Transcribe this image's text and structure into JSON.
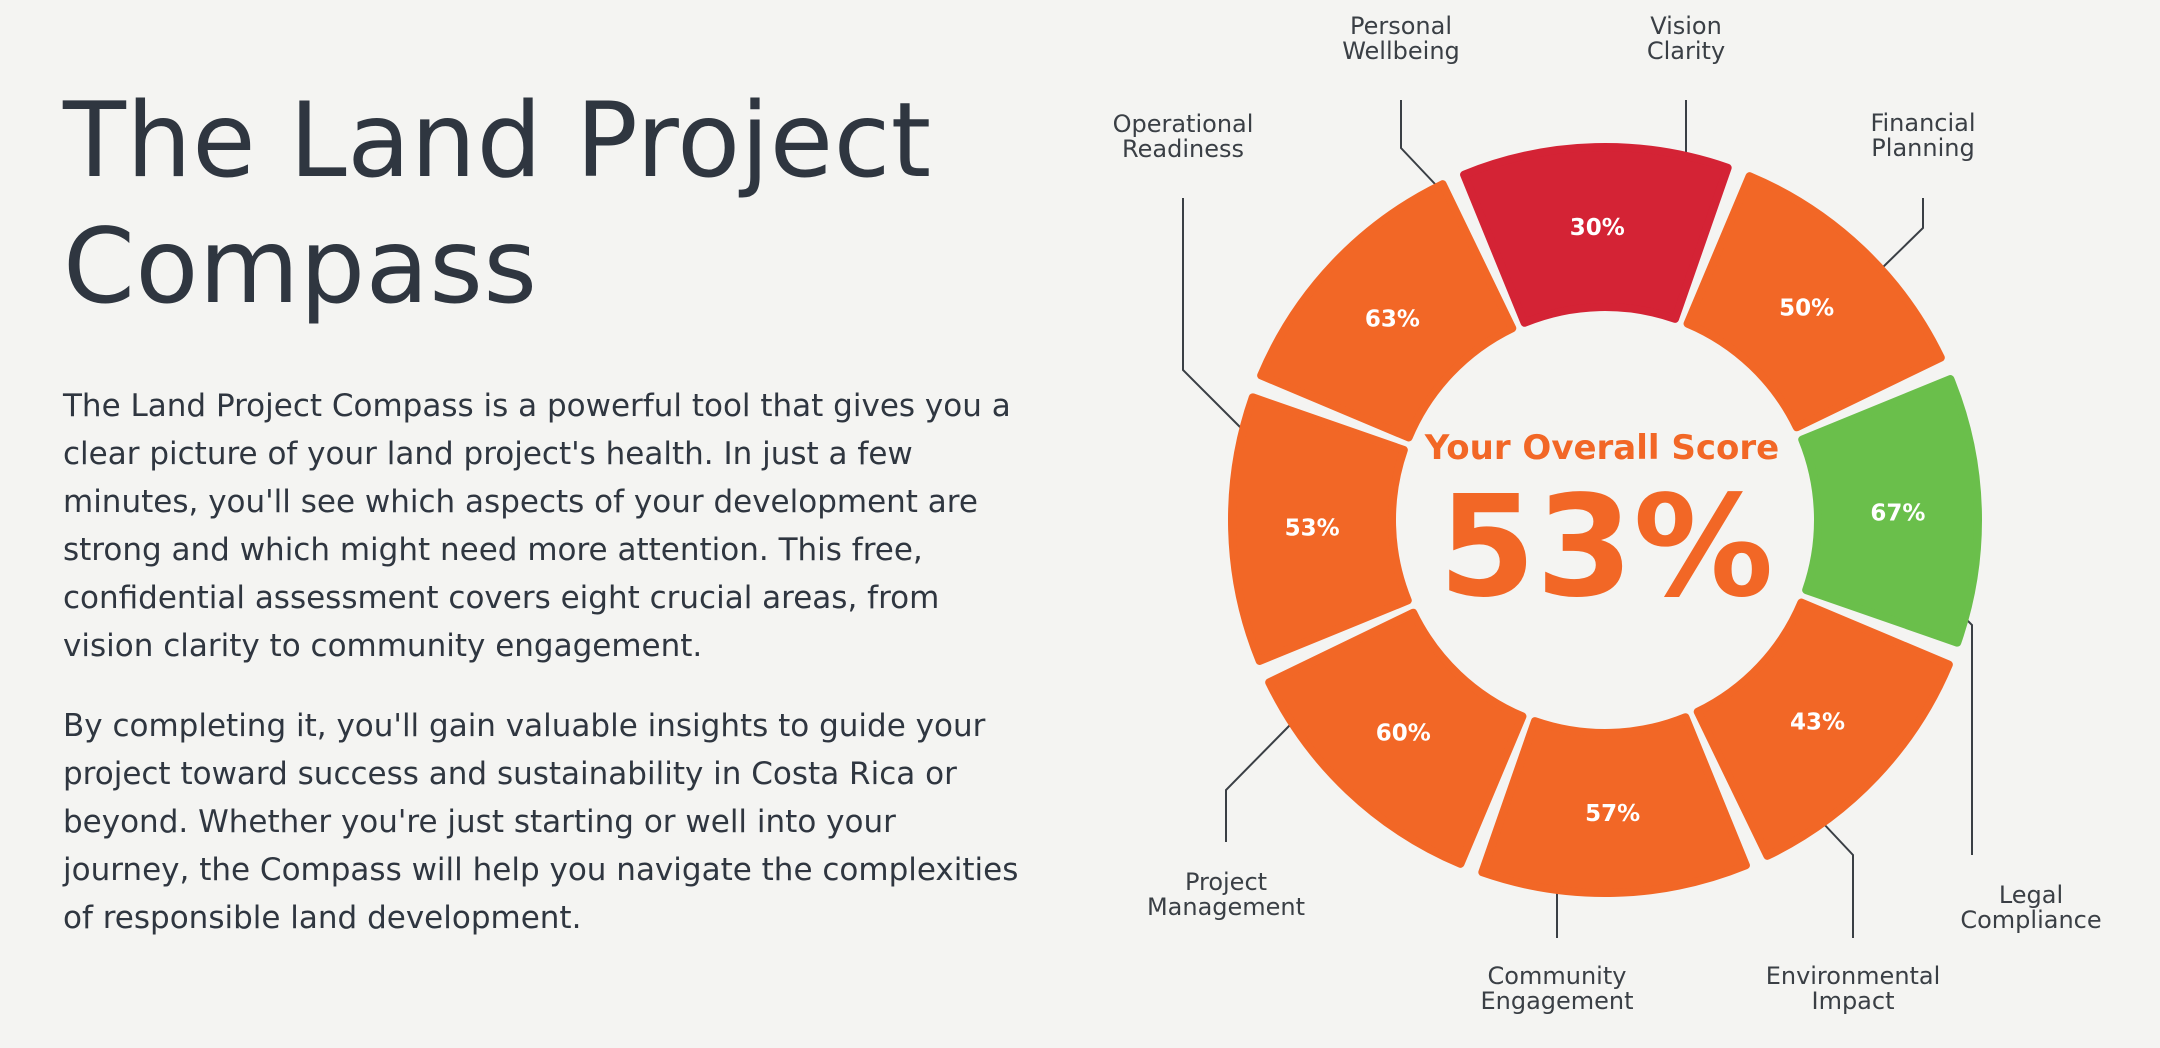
{
  "heading": {
    "title_line1": "The Land Project",
    "title_line2": "Compass"
  },
  "intro": {
    "paragraph1": "The Land Project Compass is a powerful tool that gives you a clear picture of your land project's health. In just a few minutes, you'll see which aspects of your development are strong and which might need more attention. This free, confidential assessment covers eight crucial areas, from vision clarity to community engagement.",
    "paragraph2": "By completing it, you'll gain valuable insights to guide your project toward success and sustainability in Costa Rica or beyond. Whether you're just starting or well into your journey, the Compass will help you navigate the complexities of responsible land development."
  },
  "score": {
    "label": "Your Overall Score",
    "value": "53%"
  },
  "colors": {
    "orange": "#f26726",
    "red": "#d42335",
    "green": "#6abf4b",
    "text": "#2f3640"
  },
  "chart_data": {
    "type": "radial-segments",
    "categories": [
      "Vision Clarity",
      "Financial Planning",
      "Legal Compliance",
      "Environmental Impact",
      "Community Engagement",
      "Project Management",
      "Operational Readiness",
      "Personal Wellbeing"
    ],
    "values": [
      30,
      50,
      67,
      43,
      57,
      60,
      53,
      63
    ],
    "value_labels": [
      "30%",
      "50%",
      "67%",
      "43%",
      "57%",
      "60%",
      "53%",
      "63%"
    ],
    "label_lines": [
      [
        "Vision",
        "Clarity"
      ],
      [
        "Financial",
        "Planning"
      ],
      [
        "Legal",
        "Compliance"
      ],
      [
        "Environmental",
        "Impact"
      ],
      [
        "Community",
        "Engagement"
      ],
      [
        "Project",
        "Management"
      ],
      [
        "Operational",
        "Readiness"
      ],
      [
        "Personal",
        "Wellbeing"
      ]
    ],
    "segment_colors": [
      "#d42335",
      "#f26726",
      "#6abf4b",
      "#f26726",
      "#f26726",
      "#f26726",
      "#f26726",
      "#f26726"
    ],
    "overall": 53
  }
}
